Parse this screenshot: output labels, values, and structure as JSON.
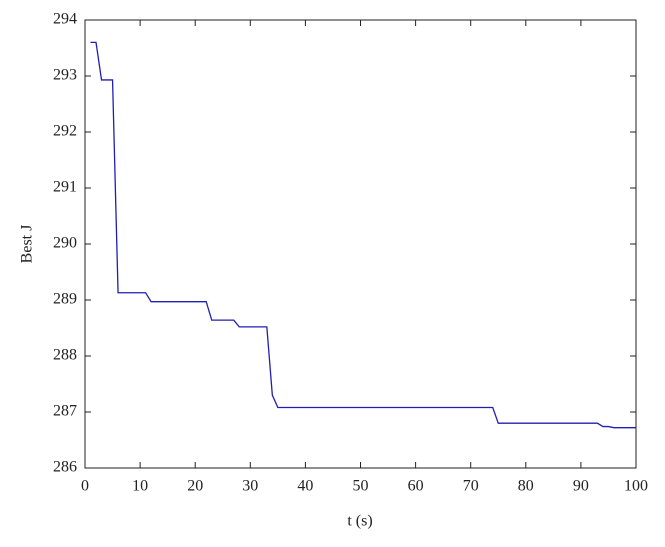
{
  "chart_data": {
    "type": "line",
    "xlabel": "t (s)",
    "ylabel": "Best J",
    "x": [
      1,
      2,
      3,
      5,
      6,
      11,
      12,
      22,
      23,
      27,
      28,
      33,
      34,
      35,
      74,
      75,
      93,
      94,
      95,
      96,
      100
    ],
    "series": [
      {
        "name": "Best J",
        "color": "#1f1fb4",
        "values": [
          293.6,
          293.6,
          292.93,
          292.93,
          289.13,
          289.13,
          288.97,
          288.97,
          288.64,
          288.64,
          288.52,
          288.52,
          287.3,
          287.08,
          287.08,
          286.8,
          286.8,
          286.74,
          286.74,
          286.72,
          286.72
        ]
      }
    ],
    "xlim": [
      0,
      100
    ],
    "xticks": [
      0,
      10,
      20,
      30,
      40,
      50,
      60,
      70,
      80,
      90,
      100
    ],
    "ylim": [
      286,
      294
    ],
    "yticks": [
      286,
      287,
      288,
      289,
      290,
      291,
      292,
      293,
      294
    ]
  }
}
